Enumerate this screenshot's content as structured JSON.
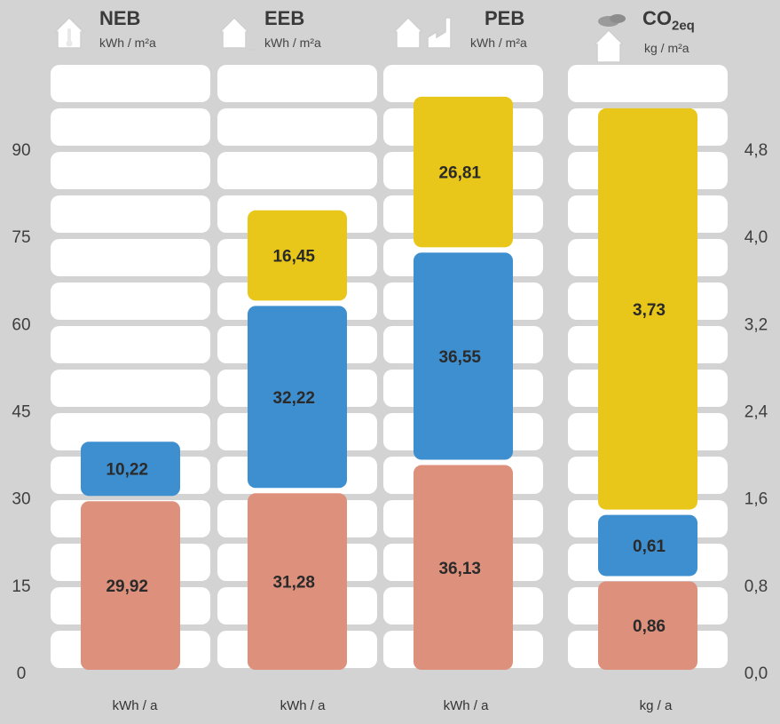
{
  "columns": [
    {
      "title": "NEB",
      "title_sub": "",
      "unit": "kWh / m²a",
      "foot": "kWh / a",
      "icon": "house-thermometer-icon"
    },
    {
      "title": "EEB",
      "title_sub": "",
      "unit": "kWh / m²a",
      "foot": "kWh / a",
      "icon": "house-plug-icon"
    },
    {
      "title": "PEB",
      "title_sub": "",
      "unit": "kWh / m²a",
      "foot": "kWh / a",
      "icon": "house-factory-icon"
    },
    {
      "title": "CO",
      "title_sub": "2eq",
      "unit": "kg / m²a",
      "foot": "kg / a",
      "icon": "house-cloud-icon"
    }
  ],
  "chart_data": {
    "type": "bar",
    "stacked": true,
    "categories": [
      "NEB",
      "EEB",
      "PEB",
      "CO2eq"
    ],
    "left_axis": {
      "ticks": [
        "0",
        "15",
        "30",
        "45",
        "60",
        "75",
        "90"
      ],
      "ylim": [
        0,
        90
      ]
    },
    "right_axis": {
      "ticks": [
        "0,0",
        "0,8",
        "1,6",
        "2,4",
        "3,2",
        "4,0",
        "4,8"
      ],
      "ylim": [
        0,
        4.8
      ],
      "applies_to": "CO2eq"
    },
    "series": [
      {
        "color": "#dd917d",
        "values": [
          29.92,
          31.28,
          36.13,
          0.86
        ],
        "labels": [
          "29,92",
          "31,28",
          "36,13",
          "0,86"
        ]
      },
      {
        "color": "#3e8fd0",
        "values": [
          10.22,
          32.22,
          36.55,
          0.61
        ],
        "labels": [
          "10,22",
          "32,22",
          "36,55",
          "0,61"
        ]
      },
      {
        "color": "#e8c71a",
        "values": [
          0,
          16.45,
          26.81,
          3.73
        ],
        "labels": [
          "",
          "16,45",
          "26,81",
          "3,73"
        ]
      }
    ],
    "colors": {
      "background": "#d3d3d3",
      "panel": "#ffffff",
      "label": "#2a2a2a"
    }
  }
}
